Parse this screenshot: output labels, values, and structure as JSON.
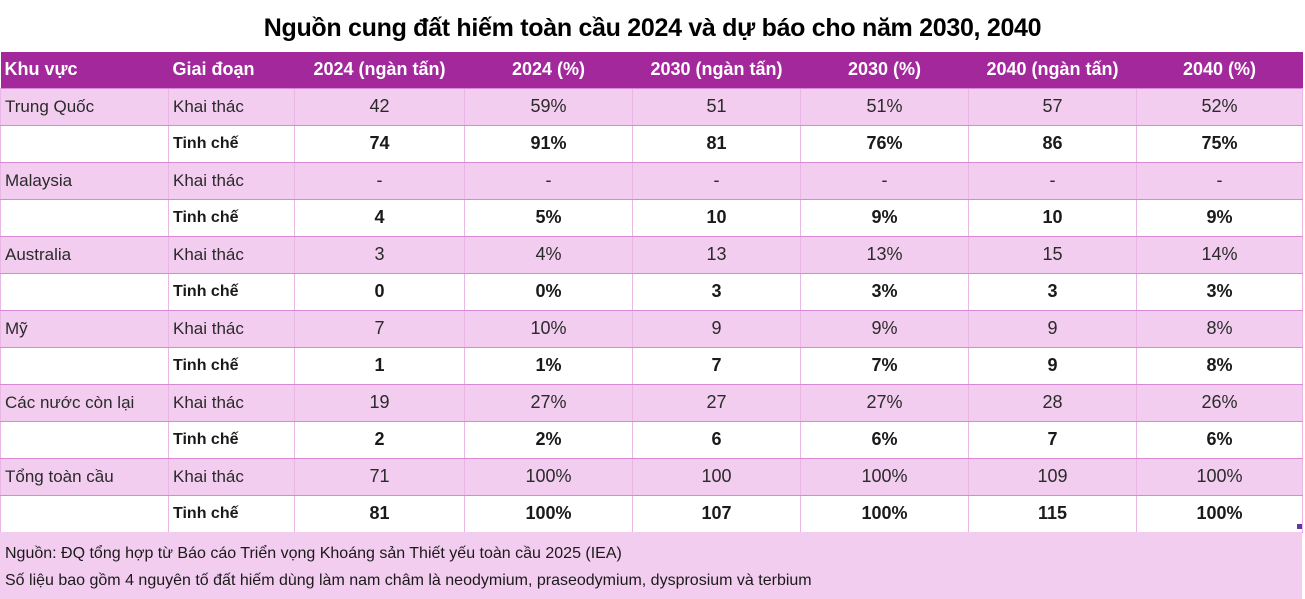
{
  "title": "Nguồn cung đất hiếm toàn cầu 2024 và dự báo cho năm 2030, 2040",
  "colors": {
    "header_bg": "#a3289c",
    "mine_row_bg": "#f2cdef",
    "refine_row_bg": "#ffffff",
    "header_text": "#ffffff"
  },
  "table": {
    "headers": [
      "Khu vực",
      "Giai đoạn",
      "2024 (ngàn tấn)",
      "2024 (%)",
      "2030 (ngàn tấn)",
      "2030 (%)",
      "2040 (ngàn tấn)",
      "2040 (%)"
    ],
    "rows": [
      {
        "region": "Trung Quốc",
        "stage": "Khai thác",
        "values": [
          "42",
          "59%",
          "51",
          "51%",
          "57",
          "52%"
        ]
      },
      {
        "region": "",
        "stage": "Tinh chế",
        "values": [
          "74",
          "91%",
          "81",
          "76%",
          "86",
          "75%"
        ]
      },
      {
        "region": "Malaysia",
        "stage": "Khai thác",
        "values": [
          "-",
          "-",
          "-",
          "-",
          "-",
          "-"
        ]
      },
      {
        "region": "",
        "stage": "Tinh chế",
        "values": [
          "4",
          "5%",
          "10",
          "9%",
          "10",
          "9%"
        ]
      },
      {
        "region": "Australia",
        "stage": "Khai thác",
        "values": [
          "3",
          "4%",
          "13",
          "13%",
          "15",
          "14%"
        ]
      },
      {
        "region": "",
        "stage": "Tinh chế",
        "values": [
          "0",
          "0%",
          "3",
          "3%",
          "3",
          "3%"
        ]
      },
      {
        "region": "Mỹ",
        "stage": "Khai thác",
        "values": [
          "7",
          "10%",
          "9",
          "9%",
          "9",
          "8%"
        ]
      },
      {
        "region": "",
        "stage": "Tinh chế",
        "values": [
          "1",
          "1%",
          "7",
          "7%",
          "9",
          "8%"
        ]
      },
      {
        "region": "Các nước còn lại",
        "stage": "Khai thác",
        "values": [
          "19",
          "27%",
          "27",
          "27%",
          "28",
          "26%"
        ]
      },
      {
        "region": "",
        "stage": "Tinh chế",
        "values": [
          "2",
          "2%",
          "6",
          "6%",
          "7",
          "6%"
        ]
      },
      {
        "region": "Tổng toàn cầu",
        "stage": "Khai thác",
        "values": [
          "71",
          "100%",
          "100",
          "100%",
          "109",
          "100%"
        ]
      },
      {
        "region": "",
        "stage": "Tinh chế",
        "values": [
          "81",
          "100%",
          "107",
          "100%",
          "115",
          "100%"
        ]
      }
    ]
  },
  "notes": {
    "source": "Nguồn: ĐQ tổng hợp từ Báo cáo Triển vọng Khoáng sản Thiết yếu toàn cầu 2025 (IEA)",
    "scope": "Số liệu bao gồm 4 nguyên tố đất hiếm dùng làm nam châm là neodymium, praseodymium, dysprosium và terbium"
  }
}
